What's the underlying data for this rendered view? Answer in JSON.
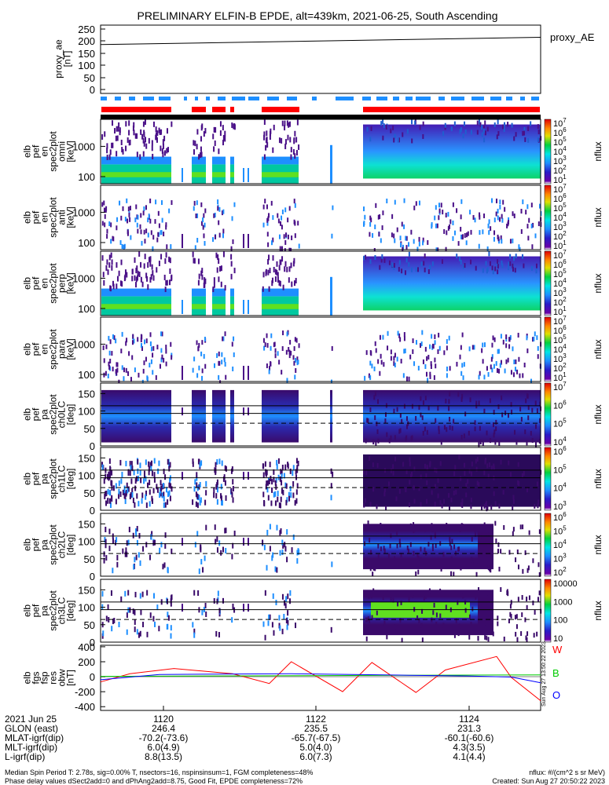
{
  "header": {
    "title": "PRELIMINARY ELFIN-B EPDE, alt=439km, 2021-06-25, South Ascending"
  },
  "proxy_panel": {
    "ylabel": [
      "proxy_ae",
      "[nT]"
    ],
    "yticks": [
      "250",
      "200",
      "150",
      "100",
      "50",
      "0"
    ],
    "legend": "proxy_AE"
  },
  "spectro_panels": [
    {
      "ylabel": [
        "elb",
        "pef",
        "en",
        "spec2plot",
        "omni",
        "[keV]"
      ],
      "yticks": [
        "1000",
        "100"
      ],
      "cticks": [
        "10^7",
        "10^6",
        "10^5",
        "10^4",
        "10^3",
        "10^2",
        "10^1"
      ],
      "ctitle": "nflux"
    },
    {
      "ylabel": [
        "elb",
        "pef",
        "en",
        "spec2plot",
        "anti",
        "[keV]"
      ],
      "yticks": [
        "1000",
        "100"
      ],
      "cticks": [
        "10^7",
        "10^6",
        "10^5",
        "10^4",
        "10^3",
        "10^2",
        "10^1"
      ],
      "ctitle": "nflux"
    },
    {
      "ylabel": [
        "elb",
        "pef",
        "en",
        "spec2plot",
        "perp",
        "[keV]"
      ],
      "yticks": [
        "1000",
        "100"
      ],
      "cticks": [
        "10^7",
        "10^6",
        "10^5",
        "10^4",
        "10^3",
        "10^2",
        "10^1"
      ],
      "ctitle": "nflux"
    },
    {
      "ylabel": [
        "elb",
        "pef",
        "en",
        "spec2plot",
        "para",
        "[keV]"
      ],
      "yticks": [
        "1000",
        "100"
      ],
      "cticks": [
        "10^7",
        "10^6",
        "10^5",
        "10^4",
        "10^3",
        "10^2",
        "10^1"
      ],
      "ctitle": "nflux"
    }
  ],
  "pa_panels": [
    {
      "ylabel": [
        "elb",
        "pef",
        "pa",
        "spec2plot",
        "ch0LC",
        "[deg]"
      ],
      "yticks": [
        "150",
        "100",
        "50",
        "0"
      ],
      "cticks": [
        "10^7",
        "10^6",
        "10^5",
        "10^4"
      ],
      "ctitle": "nflux"
    },
    {
      "ylabel": [
        "elb",
        "pef",
        "pa",
        "spec2plot",
        "ch1LC",
        "[deg]"
      ],
      "yticks": [
        "150",
        "100",
        "50",
        "0"
      ],
      "cticks": [
        "10^6",
        "10^5",
        "10^4",
        "10^3"
      ],
      "ctitle": "nflux"
    },
    {
      "ylabel": [
        "elb",
        "pef",
        "pa",
        "spec2plot",
        "ch2LC",
        "[deg]"
      ],
      "yticks": [
        "150",
        "100",
        "50",
        "0"
      ],
      "cticks": [
        "10^6",
        "10^5",
        "10^4",
        "10^3",
        "10^2"
      ],
      "ctitle": "nflux"
    },
    {
      "ylabel": [
        "elb",
        "pef",
        "pa",
        "spec2plot",
        "ch3LC",
        "[deg]"
      ],
      "yticks": [
        "150",
        "100",
        "50",
        "0"
      ],
      "cticks": [
        "10000",
        "1000",
        "100",
        "10"
      ],
      "ctitle": "nflux"
    }
  ],
  "field_panel": {
    "ylabel": [
      "elb",
      "fgs",
      "fsp",
      "res",
      "obw",
      "[nT]"
    ],
    "yticks": [
      "400",
      "200",
      "0",
      "-200",
      "-400"
    ],
    "legend": [
      {
        "label": "W",
        "color": "#ff0000"
      },
      {
        "label": "B",
        "color": "#00cc00"
      },
      {
        "label": "O",
        "color": "#0000ff"
      }
    ],
    "side_note": "Sun Aug 27 13:50:22 2023"
  },
  "colors": {
    "red_bar": "#ff0000",
    "blue_bar": "#1e8fff",
    "black_bar": "#000000"
  },
  "footer": {
    "rows": [
      {
        "label": "2021 Jun 25",
        "vals": [
          "1120",
          "1122",
          "1124"
        ]
      },
      {
        "label": "GLON (east)",
        "vals": [
          "246.4",
          "235.5",
          "231.3"
        ]
      },
      {
        "label": "MLAT-igrf(dip)",
        "vals": [
          "-70.2(-73.6)",
          "-65.7(-67.5)",
          "-60.1(-60.6)"
        ]
      },
      {
        "label": "MLT-igrf(dip)",
        "vals": [
          "6.0(4.9)",
          "5.0(4.0)",
          "4.3(3.5)"
        ]
      },
      {
        "label": "L-igrf(dip)",
        "vals": [
          "8.8(13.5)",
          "6.0(7.3)",
          "4.1(4.4)"
        ]
      }
    ],
    "note1": "Median Spin Period T: 2.78s, sig=0.00% T, nsectors=16, nspinsinsum=1, FGM completeness=48%",
    "note2": "Phase delay values dSect2add=0 and dPhAng2add=8.75, Good Fit, EPDE completeness=72%",
    "units": "nflux: #/(cm^2 s sr MeV)",
    "created": "Created: Sun Aug 27 20:50:22 2023"
  },
  "chart_data": [
    {
      "type": "line",
      "title": "PRELIMINARY ELFIN-B EPDE, alt=439km, 2021-06-25, South Ascending",
      "ylabel": "proxy_ae [nT]",
      "ylim": [
        -10,
        260
      ],
      "series": [
        {
          "name": "proxy_AE",
          "x": [
            "11:19",
            "11:25"
          ],
          "values": [
            183,
            212
          ]
        }
      ]
    },
    {
      "type": "line",
      "ylabel": "elb fgs fsp res obw [nT]",
      "ylim": [
        -450,
        420
      ],
      "series": [
        {
          "name": "W",
          "x": [
            "11:19",
            "11:19.4",
            "11:20",
            "11:20.8",
            "11:21.3",
            "11:21.6",
            "11:22.3",
            "11:22.7",
            "11:23.3",
            "11:23.7",
            "11:24.4",
            "11:24.6",
            "11:25"
          ],
          "values": [
            -70,
            40,
            110,
            40,
            -90,
            200,
            -200,
            190,
            -210,
            90,
            270,
            -10,
            -320
          ]
        },
        {
          "name": "B",
          "x": [
            "11:19",
            "11:25"
          ],
          "values": [
            5,
            25
          ]
        },
        {
          "name": "O",
          "x": [
            "11:19",
            "11:19.8",
            "11:21.6",
            "11:23.2",
            "11:24.0",
            "11:24.6",
            "11:25"
          ],
          "values": [
            -40,
            30,
            40,
            20,
            10,
            -5,
            -80
          ]
        }
      ]
    }
  ]
}
